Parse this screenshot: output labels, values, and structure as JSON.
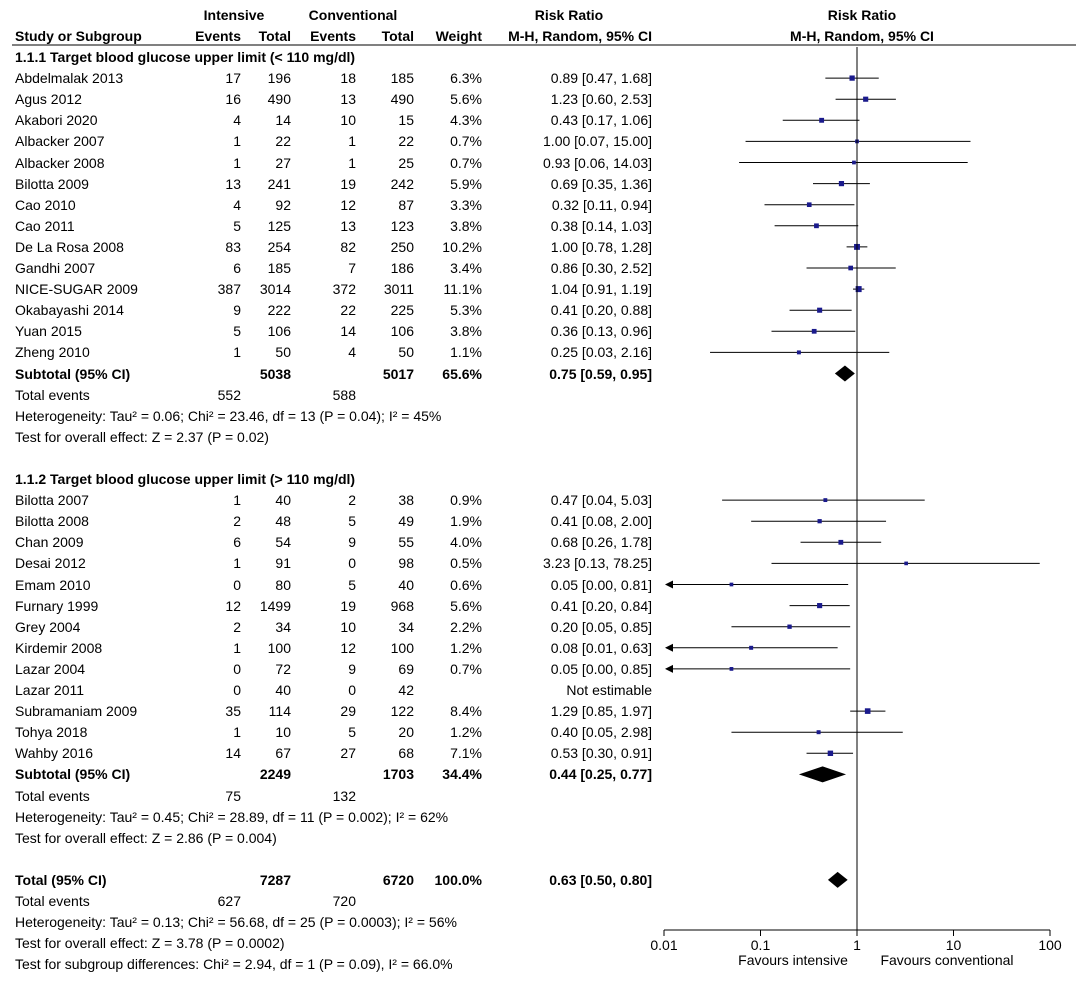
{
  "header": {
    "group1": "Intensive",
    "group2": "Conventional",
    "rr_heading": "Risk Ratio",
    "plot_heading": "Risk Ratio",
    "study_col": "Study or Subgroup",
    "events1": "Events",
    "total1": "Total",
    "events2": "Events",
    "total2": "Total",
    "weight": "Weight",
    "method": "M-H, Random, 95% CI",
    "plot_method": "M-H, Random, 95% CI"
  },
  "subgroups": [
    {
      "title": "1.1.1 Target blood glucose upper limit (< 110 mg/dl)",
      "studies": [
        {
          "name": "Abdelmalak 2013",
          "e1": "17",
          "n1": "196",
          "e2": "18",
          "n2": "185",
          "weight": "6.3%",
          "ci_text": "0.89 [0.47, 1.68]",
          "rr": 0.89,
          "lo": 0.47,
          "hi": 1.68
        },
        {
          "name": "Agus 2012",
          "e1": "16",
          "n1": "490",
          "e2": "13",
          "n2": "490",
          "weight": "5.6%",
          "ci_text": "1.23 [0.60, 2.53]",
          "rr": 1.23,
          "lo": 0.6,
          "hi": 2.53
        },
        {
          "name": "Akabori 2020",
          "e1": "4",
          "n1": "14",
          "e2": "10",
          "n2": "15",
          "weight": "4.3%",
          "ci_text": "0.43 [0.17, 1.06]",
          "rr": 0.43,
          "lo": 0.17,
          "hi": 1.06
        },
        {
          "name": "Albacker 2007",
          "e1": "1",
          "n1": "22",
          "e2": "1",
          "n2": "22",
          "weight": "0.7%",
          "ci_text": "1.00 [0.07, 15.00]",
          "rr": 1.0,
          "lo": 0.07,
          "hi": 15.0
        },
        {
          "name": "Albacker 2008",
          "e1": "1",
          "n1": "27",
          "e2": "1",
          "n2": "25",
          "weight": "0.7%",
          "ci_text": "0.93 [0.06, 14.03]",
          "rr": 0.93,
          "lo": 0.06,
          "hi": 14.03
        },
        {
          "name": "Bilotta 2009",
          "e1": "13",
          "n1": "241",
          "e2": "19",
          "n2": "242",
          "weight": "5.9%",
          "ci_text": "0.69 [0.35, 1.36]",
          "rr": 0.69,
          "lo": 0.35,
          "hi": 1.36
        },
        {
          "name": "Cao 2010",
          "e1": "4",
          "n1": "92",
          "e2": "12",
          "n2": "87",
          "weight": "3.3%",
          "ci_text": "0.32 [0.11, 0.94]",
          "rr": 0.32,
          "lo": 0.11,
          "hi": 0.94
        },
        {
          "name": "Cao 2011",
          "e1": "5",
          "n1": "125",
          "e2": "13",
          "n2": "123",
          "weight": "3.8%",
          "ci_text": "0.38 [0.14, 1.03]",
          "rr": 0.38,
          "lo": 0.14,
          "hi": 1.03
        },
        {
          "name": "De La Rosa 2008",
          "e1": "83",
          "n1": "254",
          "e2": "82",
          "n2": "250",
          "weight": "10.2%",
          "ci_text": "1.00 [0.78, 1.28]",
          "rr": 1.0,
          "lo": 0.78,
          "hi": 1.28
        },
        {
          "name": "Gandhi 2007",
          "e1": "6",
          "n1": "185",
          "e2": "7",
          "n2": "186",
          "weight": "3.4%",
          "ci_text": "0.86 [0.30, 2.52]",
          "rr": 0.86,
          "lo": 0.3,
          "hi": 2.52
        },
        {
          "name": "NICE-SUGAR 2009",
          "e1": "387",
          "n1": "3014",
          "e2": "372",
          "n2": "3011",
          "weight": "11.1%",
          "ci_text": "1.04 [0.91, 1.19]",
          "rr": 1.04,
          "lo": 0.91,
          "hi": 1.19
        },
        {
          "name": "Okabayashi 2014",
          "e1": "9",
          "n1": "222",
          "e2": "22",
          "n2": "225",
          "weight": "5.3%",
          "ci_text": "0.41 [0.20, 0.88]",
          "rr": 0.41,
          "lo": 0.2,
          "hi": 0.88
        },
        {
          "name": "Yuan 2015",
          "e1": "5",
          "n1": "106",
          "e2": "14",
          "n2": "106",
          "weight": "3.8%",
          "ci_text": "0.36 [0.13, 0.96]",
          "rr": 0.36,
          "lo": 0.13,
          "hi": 0.96
        },
        {
          "name": "Zheng 2010",
          "e1": "1",
          "n1": "50",
          "e2": "4",
          "n2": "50",
          "weight": "1.1%",
          "ci_text": "0.25 [0.03, 2.16]",
          "rr": 0.25,
          "lo": 0.03,
          "hi": 2.16
        }
      ],
      "subtotal": {
        "label": "Subtotal (95% CI)",
        "n1": "5038",
        "n2": "5017",
        "weight": "65.6%",
        "ci_text": "0.75 [0.59, 0.95]",
        "rr": 0.75,
        "lo": 0.59,
        "hi": 0.95
      },
      "total_events": {
        "label": "Total events",
        "e1": "552",
        "e2": "588"
      },
      "heterogeneity": "Heterogeneity: Tau² = 0.06; Chi² = 23.46, df = 13 (P = 0.04); I² = 45%",
      "overall": "Test for overall effect: Z = 2.37 (P = 0.02)"
    },
    {
      "title": "1.1.2 Target blood glucose upper limit (> 110 mg/dl)",
      "studies": [
        {
          "name": "Bilotta 2007",
          "e1": "1",
          "n1": "40",
          "e2": "2",
          "n2": "38",
          "weight": "0.9%",
          "ci_text": "0.47 [0.04, 5.03]",
          "rr": 0.47,
          "lo": 0.04,
          "hi": 5.03
        },
        {
          "name": "Bilotta 2008",
          "e1": "2",
          "n1": "48",
          "e2": "5",
          "n2": "49",
          "weight": "1.9%",
          "ci_text": "0.41 [0.08, 2.00]",
          "rr": 0.41,
          "lo": 0.08,
          "hi": 2.0
        },
        {
          "name": "Chan 2009",
          "e1": "6",
          "n1": "54",
          "e2": "9",
          "n2": "55",
          "weight": "4.0%",
          "ci_text": "0.68 [0.26, 1.78]",
          "rr": 0.68,
          "lo": 0.26,
          "hi": 1.78
        },
        {
          "name": "Desai 2012",
          "e1": "1",
          "n1": "91",
          "e2": "0",
          "n2": "98",
          "weight": "0.5%",
          "ci_text": "3.23 [0.13, 78.25]",
          "rr": 3.23,
          "lo": 0.13,
          "hi": 78.25
        },
        {
          "name": "Emam 2010",
          "e1": "0",
          "n1": "80",
          "e2": "5",
          "n2": "40",
          "weight": "0.6%",
          "ci_text": "0.05 [0.00, 0.81]",
          "rr": 0.05,
          "lo": 0.0,
          "hi": 0.81
        },
        {
          "name": "Furnary 1999",
          "e1": "12",
          "n1": "1499",
          "e2": "19",
          "n2": "968",
          "weight": "5.6%",
          "ci_text": "0.41 [0.20, 0.84]",
          "rr": 0.41,
          "lo": 0.2,
          "hi": 0.84
        },
        {
          "name": "Grey 2004",
          "e1": "2",
          "n1": "34",
          "e2": "10",
          "n2": "34",
          "weight": "2.2%",
          "ci_text": "0.20 [0.05, 0.85]",
          "rr": 0.2,
          "lo": 0.05,
          "hi": 0.85
        },
        {
          "name": "Kirdemir 2008",
          "e1": "1",
          "n1": "100",
          "e2": "12",
          "n2": "100",
          "weight": "1.2%",
          "ci_text": "0.08 [0.01, 0.63]",
          "rr": 0.08,
          "lo": 0.01,
          "hi": 0.63
        },
        {
          "name": "Lazar 2004",
          "e1": "0",
          "n1": "72",
          "e2": "9",
          "n2": "69",
          "weight": "0.7%",
          "ci_text": "0.05 [0.00, 0.85]",
          "rr": 0.05,
          "lo": 0.0,
          "hi": 0.85
        },
        {
          "name": "Lazar 2011",
          "e1": "0",
          "n1": "40",
          "e2": "0",
          "n2": "42",
          "weight": "",
          "ci_text": "Not estimable",
          "rr": null,
          "lo": null,
          "hi": null
        },
        {
          "name": "Subramaniam 2009",
          "e1": "35",
          "n1": "114",
          "e2": "29",
          "n2": "122",
          "weight": "8.4%",
          "ci_text": "1.29 [0.85, 1.97]",
          "rr": 1.29,
          "lo": 0.85,
          "hi": 1.97
        },
        {
          "name": "Tohya 2018",
          "e1": "1",
          "n1": "10",
          "e2": "5",
          "n2": "20",
          "weight": "1.2%",
          "ci_text": "0.40 [0.05, 2.98]",
          "rr": 0.4,
          "lo": 0.05,
          "hi": 2.98
        },
        {
          "name": "Wahby 2016",
          "e1": "14",
          "n1": "67",
          "e2": "27",
          "n2": "68",
          "weight": "7.1%",
          "ci_text": "0.53 [0.30, 0.91]",
          "rr": 0.53,
          "lo": 0.3,
          "hi": 0.91
        }
      ],
      "subtotal": {
        "label": "Subtotal (95% CI)",
        "n1": "2249",
        "n2": "1703",
        "weight": "34.4%",
        "ci_text": "0.44 [0.25, 0.77]",
        "rr": 0.44,
        "lo": 0.25,
        "hi": 0.77
      },
      "total_events": {
        "label": "Total events",
        "e1": "75",
        "e2": "132"
      },
      "heterogeneity": "Heterogeneity: Tau² = 0.45; Chi² = 28.89, df = 11 (P = 0.002); I² = 62%",
      "overall": "Test for overall effect: Z = 2.86 (P = 0.004)"
    }
  ],
  "total": {
    "label": "Total (95% CI)",
    "n1": "7287",
    "n2": "6720",
    "weight": "100.0%",
    "ci_text": "0.63 [0.50, 0.80]",
    "rr": 0.63,
    "lo": 0.5,
    "hi": 0.8
  },
  "total_events": {
    "label": "Total events",
    "e1": "627",
    "e2": "720"
  },
  "footer": {
    "heterogeneity": "Heterogeneity: Tau² = 0.13; Chi² = 56.68, df = 25 (P = 0.0003); I² = 56%",
    "overall": "Test for overall effect: Z = 3.78 (P = 0.0002)",
    "subgroup_diff": "Test for subgroup differences: Chi² = 2.94, df = 1 (P = 0.09), I² = 66.0%"
  },
  "chart_data": {
    "type": "forest",
    "scale": "log",
    "xlim": [
      0.01,
      100
    ],
    "ticks": [
      0.01,
      0.1,
      1,
      10,
      100
    ],
    "tick_labels": [
      "0.01",
      "0.1",
      "1",
      "10",
      "100"
    ],
    "null_line": 1,
    "left_label": "Favours intensive",
    "right_label": "Favours conventional"
  },
  "colors": {
    "point": "#1a1a8c",
    "line": "#000000"
  }
}
